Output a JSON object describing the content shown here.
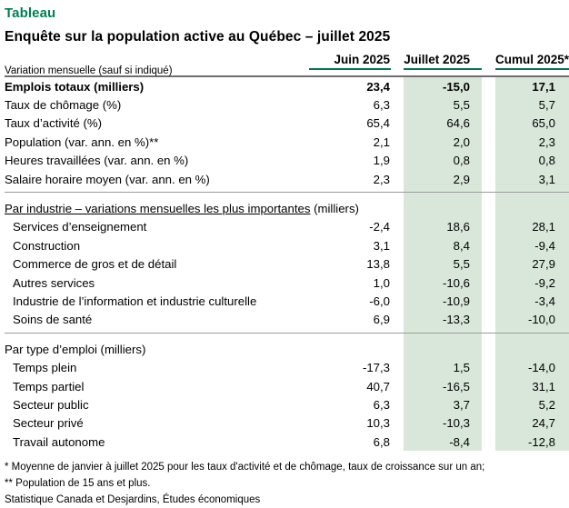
{
  "page": {
    "kicker": "Tableau",
    "title": "Enquête sur la population active au Québec – juillet 2025"
  },
  "table": {
    "row_header": "Variation mensuelle (sauf si indiqué)",
    "columns": [
      "Juin 2025",
      "Juillet 2025",
      "Cumul 2025*"
    ],
    "sections": [
      {
        "label": null,
        "suffix": "",
        "underline": false,
        "indent": false,
        "rows": [
          {
            "label": "Emplois totaux (milliers)",
            "bold": true,
            "values": [
              "23,4",
              "-15,0",
              "17,1"
            ]
          },
          {
            "label": "Taux de chômage (%)",
            "bold": false,
            "values": [
              "6,3",
              "5,5",
              "5,7"
            ]
          },
          {
            "label": "Taux d’activité (%)",
            "bold": false,
            "values": [
              "65,4",
              "64,6",
              "65,0"
            ]
          },
          {
            "label": "Population (var. ann. en %)**",
            "bold": false,
            "values": [
              "2,1",
              "2,0",
              "2,3"
            ]
          },
          {
            "label": "Heures travaillées (var. ann. en %)",
            "bold": false,
            "values": [
              "1,9",
              "0,8",
              "0,8"
            ]
          },
          {
            "label": "Salaire horaire moyen (var. ann. en %)",
            "bold": false,
            "values": [
              "2,3",
              "2,9",
              "3,1"
            ]
          }
        ]
      },
      {
        "label": "Par industrie – variations mensuelles les plus importantes",
        "suffix": " (milliers)",
        "underline": true,
        "indent": true,
        "rows": [
          {
            "label": "Services d’enseignement",
            "bold": false,
            "values": [
              "-2,4",
              "18,6",
              "28,1"
            ]
          },
          {
            "label": "Construction",
            "bold": false,
            "values": [
              "3,1",
              "8,4",
              "-9,4"
            ]
          },
          {
            "label": "Commerce de gros et de détail",
            "bold": false,
            "values": [
              "13,8",
              "5,5",
              "27,9"
            ]
          },
          {
            "label": "Autres services",
            "bold": false,
            "values": [
              "1,0",
              "-10,6",
              "-9,2"
            ]
          },
          {
            "label": "Industrie de l’information et industrie culturelle",
            "bold": false,
            "values": [
              "-6,0",
              "-10,9",
              "-3,4"
            ]
          },
          {
            "label": "Soins de santé",
            "bold": false,
            "values": [
              "6,9",
              "-13,3",
              "-10,0"
            ]
          }
        ]
      },
      {
        "label": "Par type d’emploi (milliers)",
        "suffix": "",
        "underline": false,
        "indent": true,
        "rows": [
          {
            "label": "Temps plein",
            "bold": false,
            "values": [
              "-17,3",
              "1,5",
              "-14,0"
            ]
          },
          {
            "label": "Temps partiel",
            "bold": false,
            "values": [
              "40,7",
              "-16,5",
              "31,1"
            ]
          },
          {
            "label": "Secteur public",
            "bold": false,
            "values": [
              "6,3",
              "3,7",
              "5,2"
            ]
          },
          {
            "label": "Secteur privé",
            "bold": false,
            "values": [
              "10,3",
              "-10,3",
              "24,7"
            ]
          },
          {
            "label": "Travail autonome",
            "bold": false,
            "values": [
              "6,8",
              "-8,4",
              "-12,8"
            ]
          }
        ]
      }
    ],
    "footnotes": [
      "* Moyenne de janvier à juillet 2025 pour les taux d'activité et de chômage, taux de croissance sur un an;",
      "** Population de 15 ans et plus.",
      "Statistique Canada et Desjardins, Études économiques"
    ]
  },
  "colors": {
    "accent_green": "#00814f",
    "header_underline_green": "#00794f",
    "column_shade_green": "#d9e7db",
    "header_rule_gray": "#6e6e6e",
    "divider_gray": "#9b9b9b"
  }
}
